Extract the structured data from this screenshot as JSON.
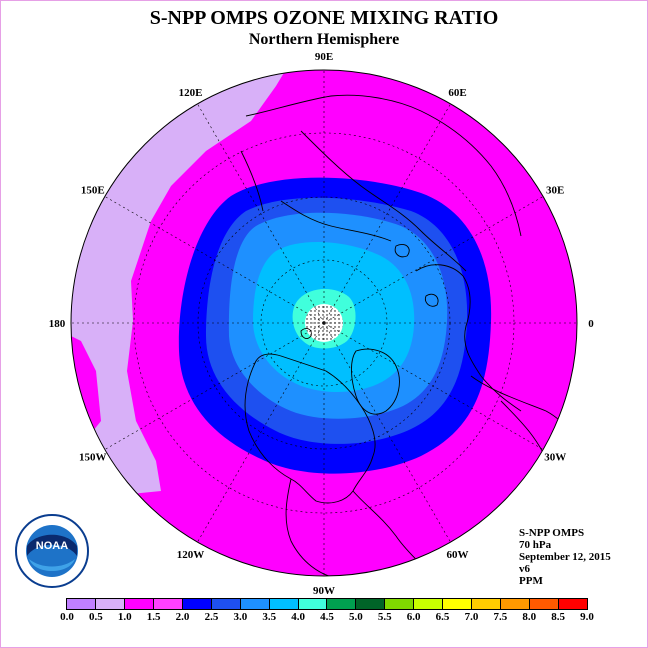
{
  "title": "S-NPP OMPS OZONE MIXING RATIO",
  "subtitle": "Northern Hemisphere",
  "info": {
    "instrument": "S-NPP OMPS",
    "level": "70 hPa",
    "date": "September 12, 2015",
    "version": "v6",
    "units": "PPM"
  },
  "logo_text": "NOAA",
  "logo_ring_text": "NATIONAL OCEANIC AND ATMOSPHERIC ADMINISTRATION · U.S. DEPARTMENT OF COMMERCE",
  "longitude_labels": [
    {
      "label": "90E",
      "angle": 90
    },
    {
      "label": "60E",
      "angle": 60
    },
    {
      "label": "30E",
      "angle": 30
    },
    {
      "label": "0",
      "angle": 0
    },
    {
      "label": "30W",
      "angle": -30
    },
    {
      "label": "60W",
      "angle": -60
    },
    {
      "label": "90W",
      "angle": -90
    },
    {
      "label": "120W",
      "angle": -120
    },
    {
      "label": "150W",
      "angle": -150
    },
    {
      "label": "180",
      "angle": 180
    },
    {
      "label": "150E",
      "angle": 150
    },
    {
      "label": "120E",
      "angle": 120
    }
  ],
  "colorbar": {
    "ticks": [
      "0.0",
      "0.5",
      "1.0",
      "1.5",
      "2.0",
      "2.5",
      "3.0",
      "3.5",
      "4.0",
      "4.5",
      "5.0",
      "5.5",
      "6.0",
      "6.5",
      "7.0",
      "7.5",
      "8.0",
      "8.5",
      "9.0"
    ],
    "colors": [
      "#c080ff",
      "#d8b0f8",
      "#ff00ff",
      "#ff40ff",
      "#0000ff",
      "#1e50f0",
      "#1e90ff",
      "#00bfff",
      "#40ffdc",
      "#00a050",
      "#006428",
      "#80d800",
      "#c8ff00",
      "#ffff00",
      "#ffcc00",
      "#ff9900",
      "#ff5a00",
      "#ff0000",
      "#8b5a2b"
    ]
  },
  "map": {
    "colors": {
      "background": "#ff00ff",
      "low_ozone": "#d8b0f8",
      "band_2_0": "#0000ff",
      "band_2_5": "#1e50f0",
      "band_3_0": "#1e90ff",
      "band_3_5": "#00bfff",
      "band_4_0": "#40ffdc",
      "no_data": "#ffffff"
    }
  }
}
